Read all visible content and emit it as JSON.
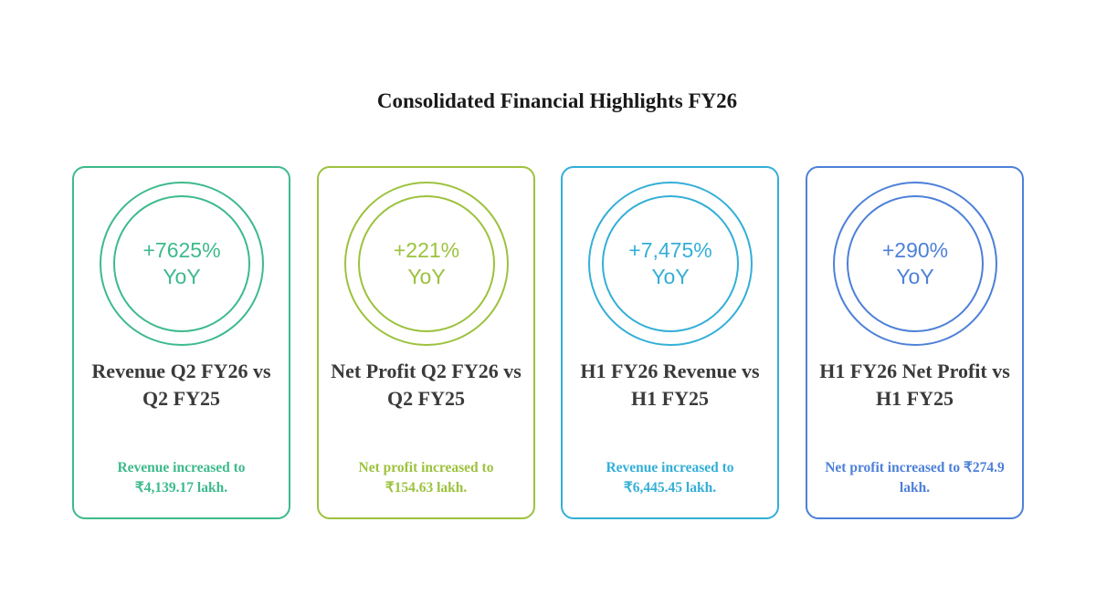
{
  "title": "Consolidated Financial Highlights FY26",
  "cards": [
    {
      "value": "+7625%",
      "unit": "YoY",
      "label": "Revenue Q2 FY26 vs Q2 FY25",
      "desc": "Revenue increased to ₹4,139.17 lakh.",
      "color": "#3dba8c"
    },
    {
      "value": "+221%",
      "unit": "YoY",
      "label": "Net Profit Q2 FY26 vs Q2 FY25",
      "desc": "Net profit increased to ₹154.63 lakh.",
      "color": "#9cc23d"
    },
    {
      "value": "+7,475%",
      "unit": "YoY",
      "label": "H1 FY26 Revenue vs H1 FY25",
      "desc": "Revenue increased to ₹6,445.45 lakh.",
      "color": "#33afd7"
    },
    {
      "value": "+290%",
      "unit": "YoY",
      "label": "H1 FY26 Net Profit vs H1 FY25",
      "desc": "Net profit increased to ₹274.9 lakh.",
      "color": "#4d80d8"
    }
  ]
}
